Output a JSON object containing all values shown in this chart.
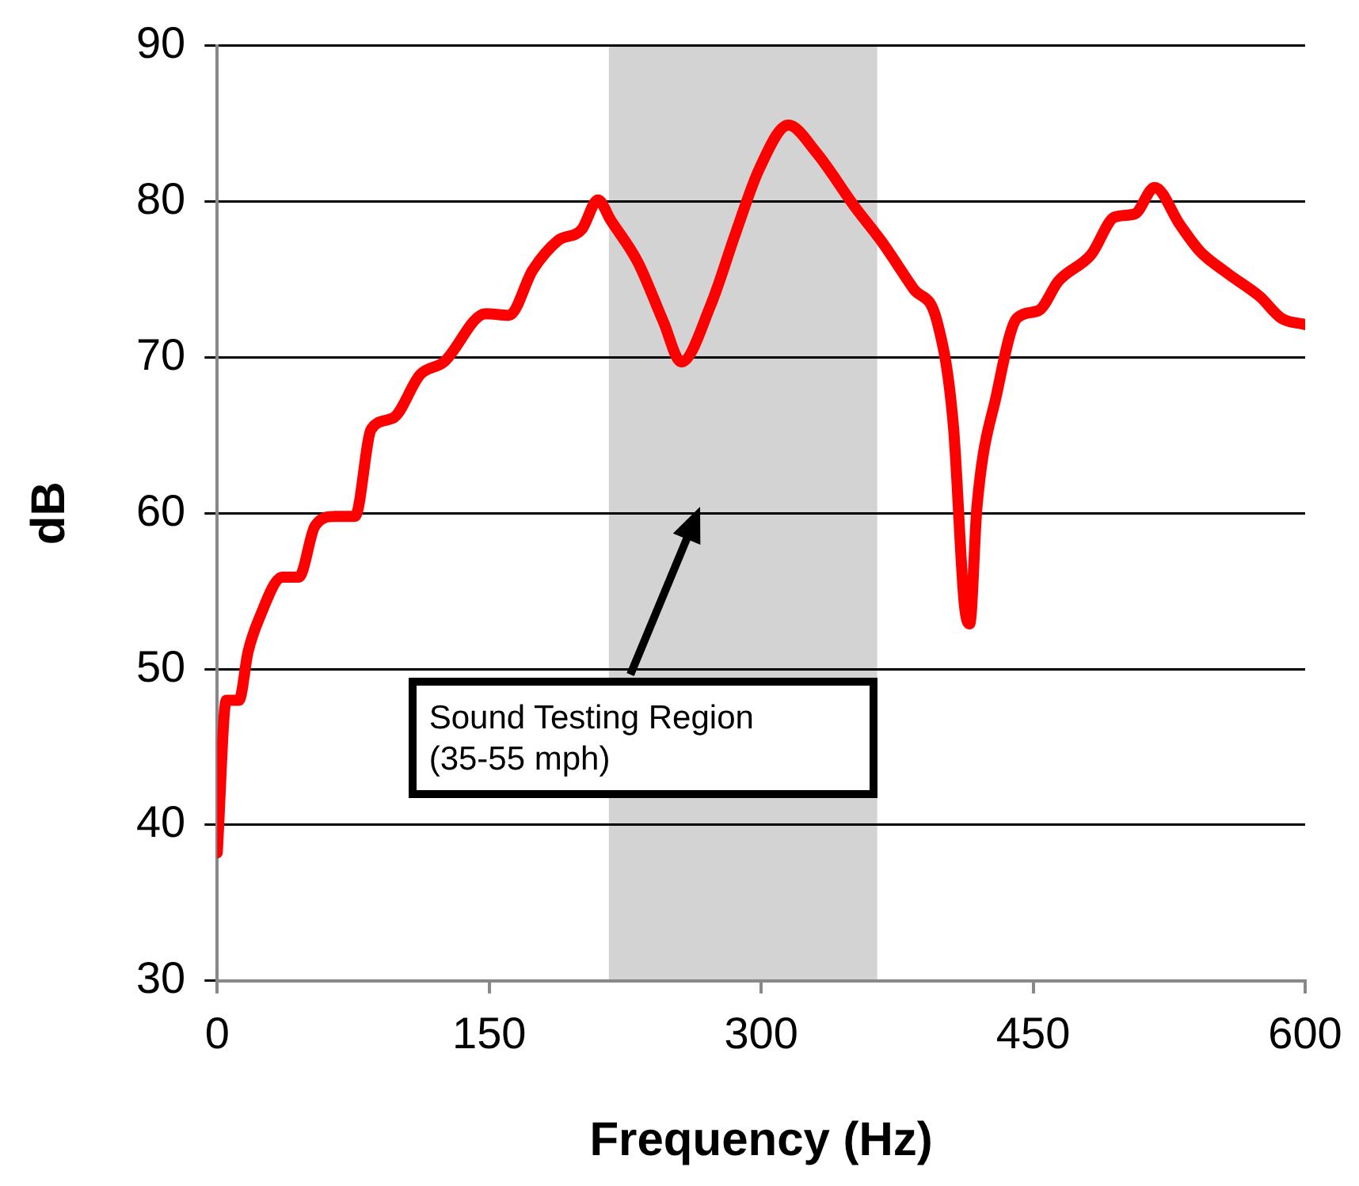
{
  "chart_data": {
    "type": "line",
    "xlabel": "Frequency (Hz)",
    "ylabel": "dB",
    "xlim": [
      0,
      600
    ],
    "xticks": [
      0,
      150,
      300,
      450,
      600
    ],
    "ylim": [
      30,
      90
    ],
    "yticks": [
      30,
      40,
      50,
      60,
      70,
      80,
      90
    ],
    "grid": "y",
    "legend": false,
    "marker": "none",
    "line_style": "solid",
    "bands": [
      {
        "axis": "x",
        "from": 216,
        "to": 364,
        "label": "Sound Testing Region\n(35-55 mph)",
        "color": "#d3d3d3"
      }
    ],
    "series": [
      {
        "color": "#ff0000",
        "x": [
          0,
          5,
          12,
          17,
          23,
          36,
          45,
          54,
          65,
          76,
          85,
          97,
          112,
          125,
          148,
          161,
          174,
          188,
          201,
          210,
          217,
          232,
          246,
          256,
          272,
          286,
          299,
          315,
          330,
          352,
          366,
          384,
          397,
          406,
          412,
          415,
          419,
          430,
          441,
          453,
          464,
          482,
          495,
          506,
          517,
          531,
          542,
          557,
          575,
          587,
          600
        ],
        "values": [
          38.2,
          48,
          48,
          51.1,
          53.2,
          55.9,
          55.9,
          59.2,
          59.8,
          59.8,
          65.4,
          66.1,
          68.9,
          69.7,
          72.8,
          72.7,
          75.6,
          77.5,
          78.2,
          80.1,
          78.8,
          76.1,
          72.3,
          69.7,
          73.3,
          78,
          82.1,
          84.9,
          83.2,
          79.6,
          77.5,
          74.4,
          72.3,
          65.6,
          54.2,
          52.9,
          60.4,
          67.7,
          72.5,
          73,
          74.9,
          76.6,
          79,
          79.2,
          80.9,
          78.5,
          76.8,
          75.4,
          73.9,
          72.5,
          72.1
        ]
      }
    ]
  }
}
